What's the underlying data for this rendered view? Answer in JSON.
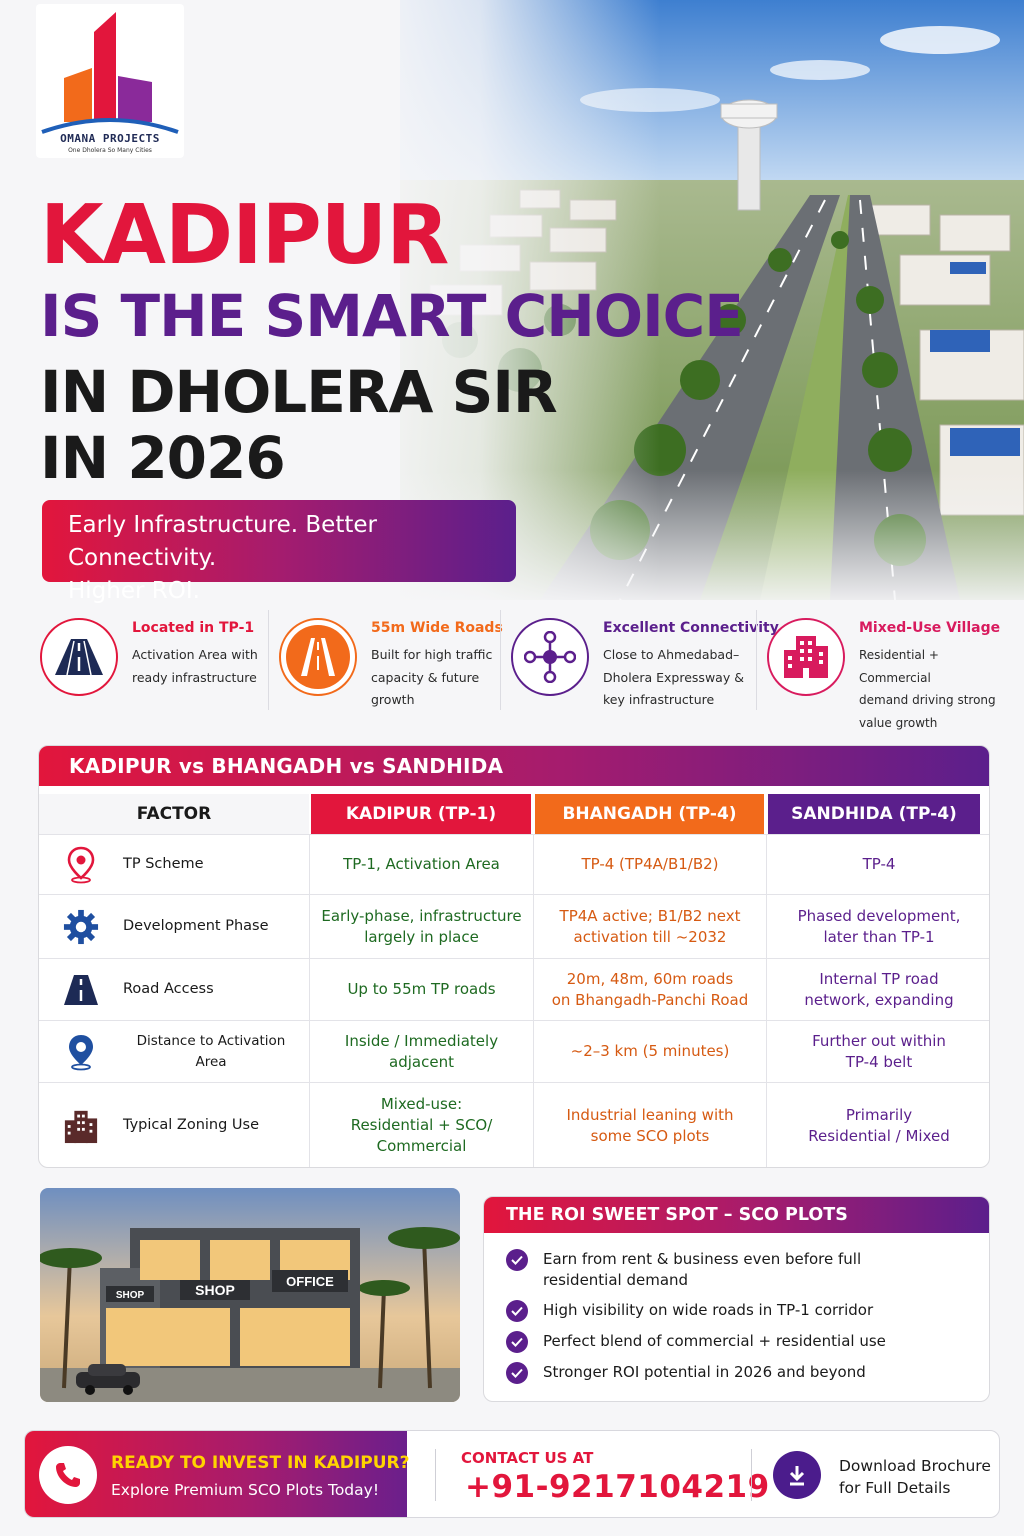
{
  "brand": {
    "name": "OMANA PROJECTS",
    "tagline": "One Dholera So Many Cities"
  },
  "hero": {
    "line1": "KADIPUR",
    "line2": "IS THE SMART CHOICE",
    "line3": "IN DHOLERA SIR",
    "line4": "IN 2026",
    "tagline_line1": "Early Infrastructure. Better Connectivity.",
    "tagline_line2": "Higher ROI."
  },
  "features": [
    {
      "title": "Located in TP-1",
      "desc": [
        "Activation Area with",
        "ready infrastructure"
      ],
      "icon": "road-icon",
      "color": "#e2163c"
    },
    {
      "title": "55m Wide Roads",
      "desc": [
        "Built for high traffic",
        "capacity & future",
        "growth"
      ],
      "icon": "highway-icon",
      "color": "#f26a1b"
    },
    {
      "title": "Excellent Connectivity",
      "desc": [
        "Close to Ahmedabad–",
        "Dholera Expressway &",
        "key infrastructure"
      ],
      "icon": "network-icon",
      "color": "#5b1f8c"
    },
    {
      "title": "Mixed-Use Village",
      "desc": [
        "Residential + Commercial",
        "demand driving strong",
        "value growth"
      ],
      "icon": "buildings-icon",
      "color": "#d81b5e"
    }
  ],
  "comparison": {
    "title": "KADIPUR vs BHANGADH vs SANDHIDA",
    "headers": {
      "factor": "FACTOR",
      "kadipur": "KADIPUR (TP-1)",
      "bhangadh": "BHANGADH (TP-4)",
      "sandhida": "SANDHIDA (TP-4)"
    },
    "header_colors": {
      "kadipur": "#e2163c",
      "bhangadh": "#f26a1b",
      "sandhida": "#5b1f8c"
    },
    "rows": [
      {
        "factor": "TP Scheme",
        "icon": "location-pin-icon",
        "kadipur": [
          "TP-1, Activation Area"
        ],
        "bhangadh": [
          "TP-4 (TP4A/B1/B2)"
        ],
        "sandhida": [
          "TP-4"
        ]
      },
      {
        "factor": "Development Phase",
        "icon": "gear-icon",
        "kadipur": [
          "Early-phase, infrastructure",
          "largely in place"
        ],
        "bhangadh": [
          "TP4A active; B1/B2 next",
          "activation till ~2032"
        ],
        "sandhida": [
          "Phased development,",
          "later than TP-1"
        ]
      },
      {
        "factor": "Road Access",
        "icon": "road-icon",
        "kadipur": [
          "Up to 55m TP roads"
        ],
        "bhangadh": [
          "20m, 48m, 60m roads",
          "on Bhangadh-Panchi Road"
        ],
        "sandhida": [
          "Internal TP road",
          "network, expanding"
        ]
      },
      {
        "factor": "Distance to Activation Area",
        "icon": "map-pin-icon",
        "kadipur": [
          "Inside / Immediately",
          "adjacent"
        ],
        "bhangadh": [
          "~2–3 km (5 minutes)"
        ],
        "sandhida": [
          "Further out within",
          "TP-4 belt"
        ]
      },
      {
        "factor": "Typical Zoning Use",
        "icon": "buildings-icon",
        "kadipur": [
          "Mixed-use:",
          "Residential + SCO/",
          "Commercial"
        ],
        "bhangadh": [
          "Industrial leaning with",
          "some SCO plots"
        ],
        "sandhida": [
          "Primarily",
          "Residential / Mixed"
        ]
      }
    ]
  },
  "sco_image": {
    "sign_shop_left": "SHOP",
    "sign_shop": "SHOP",
    "sign_office": "OFFICE"
  },
  "roi": {
    "title": "THE ROI SWEET SPOT – SCO PLOTS",
    "items": [
      [
        "Earn from rent & business even before full",
        "residential demand"
      ],
      [
        "High visibility on wide roads in TP-1 corridor"
      ],
      [
        "Perfect blend of commercial + residential use"
      ],
      [
        "Stronger ROI potential in 2026 and beyond"
      ]
    ]
  },
  "cta": {
    "question": "READY TO INVEST IN KADIPUR?",
    "sub": "Explore Premium SCO Plots Today!",
    "contact_label": "CONTACT US AT",
    "phone": "+91-9217104219",
    "download_line1": "Download Brochure",
    "download_line2": "for Full Details"
  }
}
